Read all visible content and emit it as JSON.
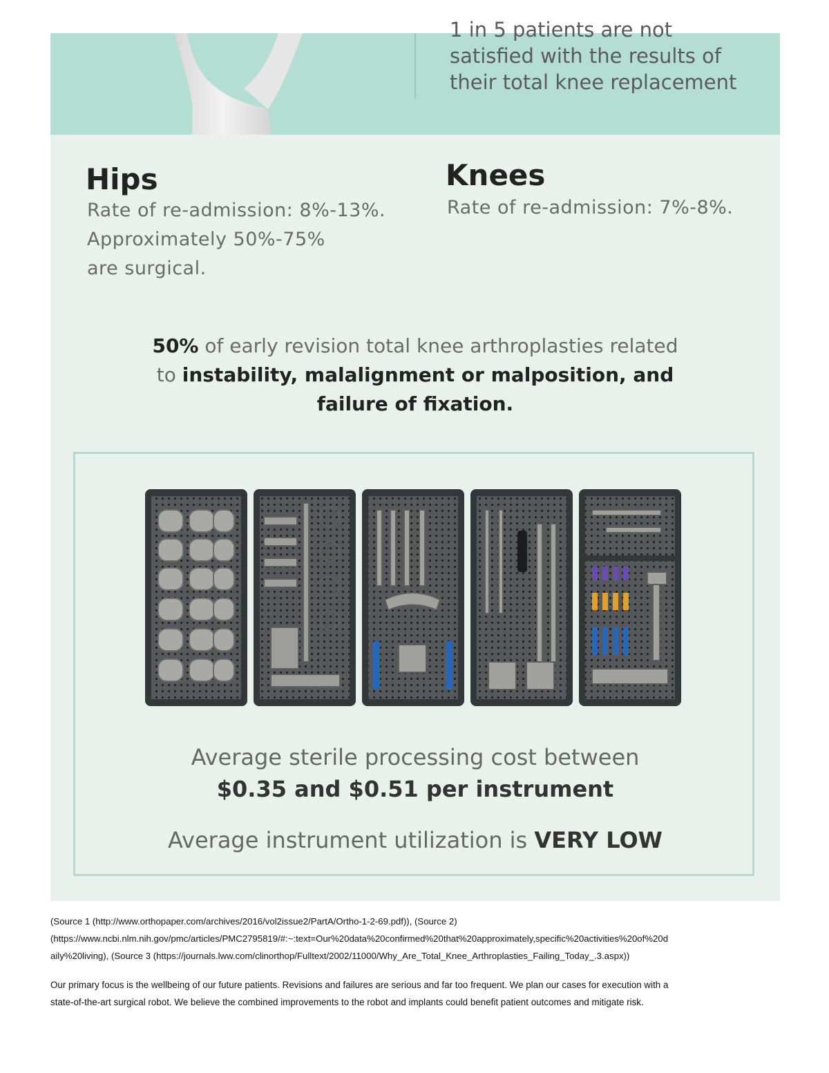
{
  "infographic": {
    "banner_lines": [
      "1 in 5 patients are not",
      "satisfied with the results of",
      "their total knee replacement"
    ],
    "hips": {
      "heading": "Hips",
      "lines": [
        "Rate of re-admission: 8%-13%.",
        "Approximately 50%-75%",
        "are surgical."
      ]
    },
    "knees": {
      "heading": "Knees",
      "lines": [
        "Rate of re-admission: 7%-8%."
      ]
    },
    "revision": {
      "percent": "50%",
      "text_a": " of early revision total knee arthroplasties related",
      "text_b": "to ",
      "causes": "instability, malalignment or malposition, and",
      "causes_2": "failure of fixation."
    },
    "cost": {
      "line1": "Average sterile processing cost between",
      "line2": "$0.35 and $0.51 per instrument"
    },
    "utilization": {
      "prefix": "Average instrument utilization is ",
      "emphasis": "VERY LOW"
    },
    "colors": {
      "band": "#b4ddd3",
      "panel": "#e8f1ec",
      "frame": "#b4d8cf",
      "tray": "#3d4043",
      "blue_handle": "#2a66b8",
      "orange_handle": "#e0a030",
      "purple_handle": "#6a4bb0"
    }
  },
  "sources": {
    "lines": [
      "(Source 1 (http://www.orthopaper.com/archives/2016/vol2issue2/PartA/Ortho-1-2-69.pdf)), (Source 2)",
      "(https://www.ncbi.nlm.nih.gov/pmc/articles/PMC2795819/#:~:text=Our%20data%20confirmed%20that%20approximately,specific%20activities%20of%20d",
      "aily%20living), (Source 3 (https://journals.lww.com/clinorthop/Fulltext/2002/11000/Why_Are_Total_Knee_Arthroplasties_Failing_Today_.3.aspx))"
    ]
  },
  "focus": {
    "lines": [
      "Our primary focus is the wellbeing of our future patients.  Revisions and failures are serious and far too frequent. We plan our cases for execution with a",
      "state-of-the-art surgical robot.  We believe the combined improvements to the robot and implants could benefit patient outcomes and mitigate risk."
    ]
  }
}
